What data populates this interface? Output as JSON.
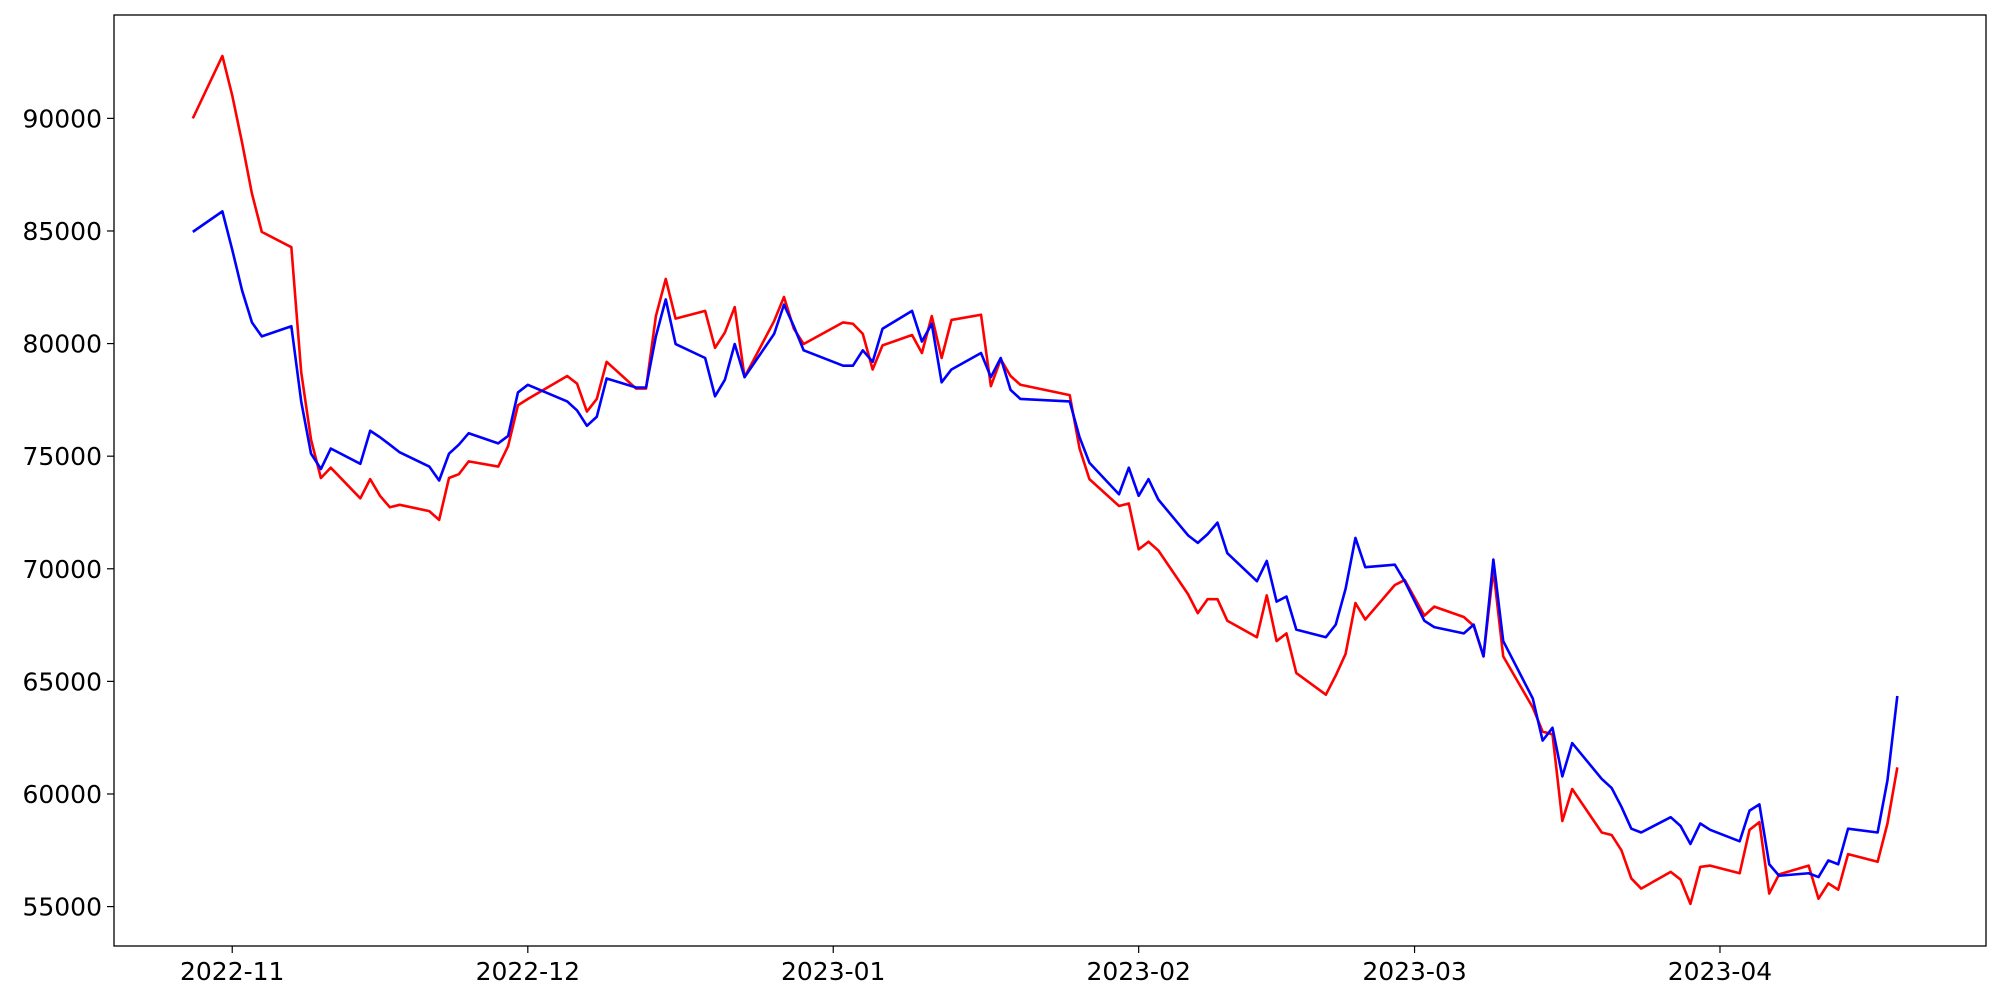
{
  "chart_data": {
    "type": "line",
    "x": [
      "2022-10-28",
      "2022-10-31",
      "2022-11-01",
      "2022-11-02",
      "2022-11-03",
      "2022-11-04",
      "2022-11-07",
      "2022-11-08",
      "2022-11-09",
      "2022-11-10",
      "2022-11-11",
      "2022-11-14",
      "2022-11-15",
      "2022-11-16",
      "2022-11-17",
      "2022-11-18",
      "2022-11-21",
      "2022-11-22",
      "2022-11-23",
      "2022-11-24",
      "2022-11-25",
      "2022-11-28",
      "2022-11-29",
      "2022-11-30",
      "2022-12-01",
      "2022-12-05",
      "2022-12-06",
      "2022-12-07",
      "2022-12-08",
      "2022-12-09",
      "2022-12-12",
      "2022-12-13",
      "2022-12-14",
      "2022-12-15",
      "2022-12-16",
      "2022-12-19",
      "2022-12-20",
      "2022-12-21",
      "2022-12-22",
      "2022-12-23",
      "2022-12-26",
      "2022-12-27",
      "2022-12-28",
      "2022-12-29",
      "2023-01-02",
      "2023-01-03",
      "2023-01-04",
      "2023-01-05",
      "2023-01-06",
      "2023-01-09",
      "2023-01-10",
      "2023-01-11",
      "2023-01-12",
      "2023-01-13",
      "2023-01-16",
      "2023-01-17",
      "2023-01-18",
      "2023-01-19",
      "2023-01-20",
      "2023-01-25",
      "2023-01-26",
      "2023-01-27",
      "2023-01-30",
      "2023-01-31",
      "2023-02-01",
      "2023-02-02",
      "2023-02-03",
      "2023-02-06",
      "2023-02-07",
      "2023-02-08",
      "2023-02-09",
      "2023-02-10",
      "2023-02-13",
      "2023-02-14",
      "2023-02-15",
      "2023-02-16",
      "2023-02-17",
      "2023-02-20",
      "2023-02-21",
      "2023-02-22",
      "2023-02-23",
      "2023-02-24",
      "2023-02-27",
      "2023-02-28",
      "2023-03-02",
      "2023-03-03",
      "2023-03-06",
      "2023-03-07",
      "2023-03-08",
      "2023-03-09",
      "2023-03-10",
      "2023-03-13",
      "2023-03-14",
      "2023-03-15",
      "2023-03-16",
      "2023-03-17",
      "2023-03-20",
      "2023-03-21",
      "2023-03-22",
      "2023-03-23",
      "2023-03-24",
      "2023-03-27",
      "2023-03-28",
      "2023-03-29",
      "2023-03-30",
      "2023-03-31",
      "2023-04-03",
      "2023-04-04",
      "2023-04-05",
      "2023-04-06",
      "2023-04-07",
      "2023-04-10",
      "2023-04-11",
      "2023-04-12",
      "2023-04-13",
      "2023-04-14",
      "2023-04-17",
      "2023-04-18",
      "2023-04-19"
    ],
    "series": [
      {
        "color": "#ff0000",
        "values": [
          90000,
          92770,
          91020,
          88920,
          86660,
          84960,
          84280,
          78730,
          75730,
          74030,
          74490,
          73130,
          73980,
          73240,
          72730,
          72840,
          72560,
          72170,
          74030,
          74200,
          74770,
          74540,
          75450,
          77260,
          77540,
          78560,
          78220,
          76980,
          77540,
          79190,
          78000,
          78000,
          81220,
          82870,
          81110,
          81450,
          79810,
          80490,
          81620,
          78510,
          81000,
          82070,
          80660,
          79980,
          80940,
          80880,
          80430,
          78850,
          79920,
          80380,
          79580,
          81220,
          79360,
          81050,
          81280,
          78110,
          79300,
          78560,
          78170,
          77710,
          75340,
          73980,
          72790,
          72900,
          70860,
          71200,
          70810,
          68880,
          68030,
          68650,
          68650,
          67690,
          66960,
          68820,
          66790,
          67130,
          65370,
          64410,
          65260,
          66220,
          68480,
          67750,
          69280,
          69500,
          67920,
          68320,
          67860,
          67470,
          66110,
          69960,
          66110,
          63840,
          62770,
          62650,
          58800,
          60220,
          58290,
          58180,
          57500,
          56250,
          55800,
          56540,
          56200,
          55120,
          56760,
          56820,
          56480,
          58410,
          58750,
          55580,
          56430,
          56820,
          55350,
          56030,
          55750,
          57330,
          56990,
          58690,
          61180
        ]
      },
      {
        "color": "#0000ff",
        "values": [
          84960,
          85870,
          84170,
          82360,
          80940,
          80320,
          80770,
          77430,
          75110,
          74430,
          75340,
          74660,
          76130,
          75840,
          75510,
          75170,
          74540,
          73920,
          75110,
          75510,
          76020,
          75570,
          75900,
          77830,
          78170,
          77430,
          77030,
          76350,
          76750,
          78450,
          78050,
          78050,
          80320,
          81960,
          79980,
          79360,
          77660,
          78390,
          79980,
          78510,
          80430,
          81730,
          80770,
          79700,
          79020,
          79020,
          79700,
          79190,
          80660,
          81450,
          80090,
          80880,
          78280,
          78850,
          79580,
          78510,
          79360,
          77940,
          77540,
          77430,
          75840,
          74710,
          73310,
          74490,
          73240,
          73980,
          73070,
          71490,
          71150,
          71540,
          72050,
          70690,
          69450,
          70350,
          68540,
          68770,
          67300,
          66960,
          67520,
          69110,
          71370,
          70070,
          70180,
          69450,
          67690,
          67410,
          67130,
          67520,
          66110,
          70410,
          66790,
          64240,
          62370,
          62940,
          60780,
          62260,
          60670,
          60270,
          59430,
          58460,
          58290,
          58970,
          58580,
          57780,
          58690,
          58410,
          57900,
          59260,
          59540,
          56880,
          56370,
          56480,
          56310,
          57050,
          56880,
          58460,
          58290,
          60610,
          64350
        ]
      }
    ],
    "xlim": [
      "2022-10-20",
      "2023-04-28"
    ],
    "xticks": [
      {
        "value": "2022-11-01",
        "label": "2022-11"
      },
      {
        "value": "2022-12-01",
        "label": "2022-12"
      },
      {
        "value": "2023-01-01",
        "label": "2023-01"
      },
      {
        "value": "2023-02-01",
        "label": "2023-02"
      },
      {
        "value": "2023-03-01",
        "label": "2023-03"
      },
      {
        "value": "2023-04-01",
        "label": "2023-04"
      }
    ],
    "ylim": [
      53250,
      94590
    ],
    "yticks": [
      55000,
      60000,
      65000,
      70000,
      75000,
      80000,
      85000,
      90000
    ],
    "grid": false
  }
}
